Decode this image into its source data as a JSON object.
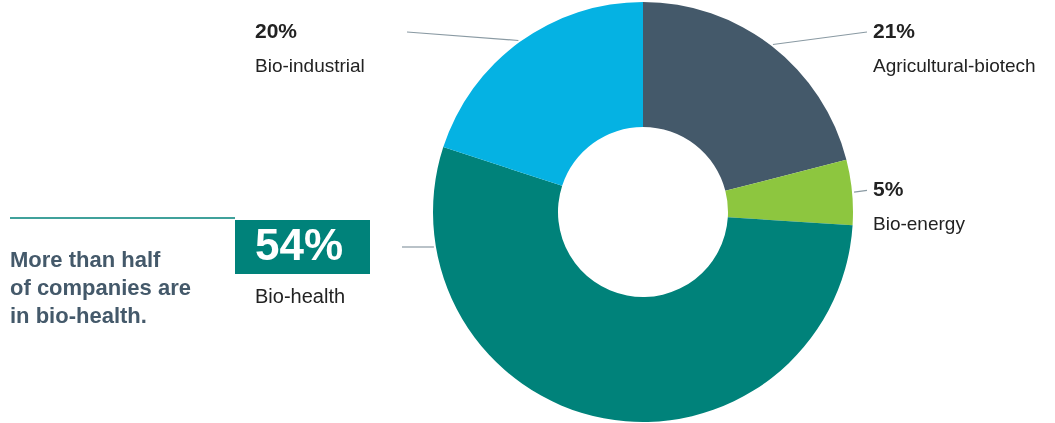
{
  "chart_data": {
    "type": "donut",
    "categories": [
      "Agricultural-biotech",
      "Bio-energy",
      "Bio-health",
      "Bio-industrial"
    ],
    "values": [
      21,
      5,
      54,
      20
    ],
    "colors": [
      "#44596a",
      "#8dc63f",
      "#00827a",
      "#05b2e3"
    ],
    "value_labels": [
      "21%",
      "5%",
      "54%",
      "20%"
    ],
    "annotations": [
      "More than half of companies are in bio-health."
    ]
  }
}
